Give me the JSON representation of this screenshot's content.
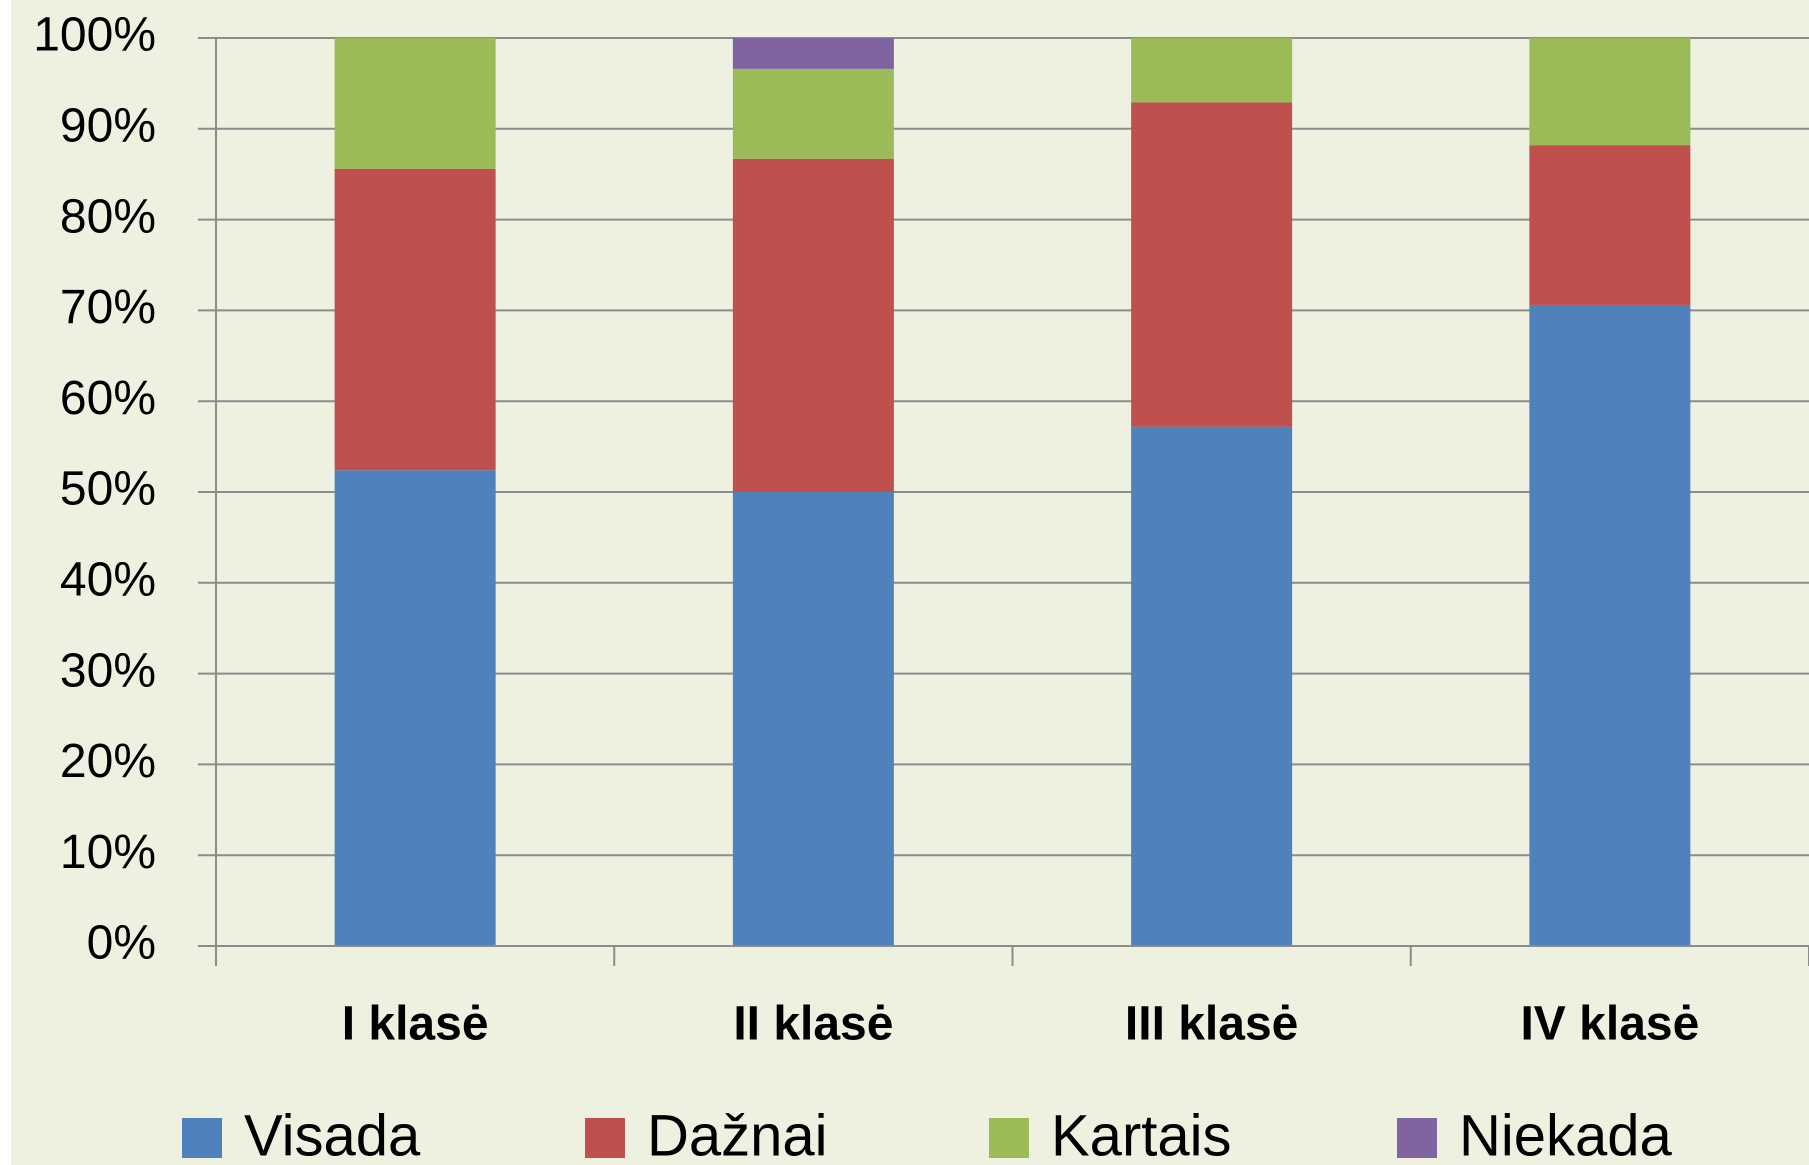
{
  "chart_data": {
    "type": "stacked_bar",
    "categories": [
      "I klasė",
      "II klasė",
      "III klasė",
      "IV klasė"
    ],
    "series": [
      {
        "name": "Visada",
        "color": "#4f81bd",
        "values": [
          52.4,
          50,
          57.2,
          70.6
        ]
      },
      {
        "name": "Dažnai",
        "color": "#c0504d",
        "values": [
          33.2,
          36.7,
          35.7,
          17.6
        ]
      },
      {
        "name": "Kartais",
        "color": "#9bbb59",
        "values": [
          14.4,
          9.9,
          7.1,
          11.8
        ]
      },
      {
        "name": "Niekada",
        "color": "#8064a2",
        "values": [
          0,
          3.4,
          0,
          0
        ]
      }
    ],
    "ylim": [
      0,
      100
    ],
    "yticks": [
      {
        "value": 0,
        "label": "0%"
      },
      {
        "value": 10,
        "label": "10%"
      },
      {
        "value": 20,
        "label": "20%"
      },
      {
        "value": 30,
        "label": "30%"
      },
      {
        "value": 40,
        "label": "40%"
      },
      {
        "value": 50,
        "label": "50%"
      },
      {
        "value": 60,
        "label": "60%"
      },
      {
        "value": 70,
        "label": "70%"
      },
      {
        "value": 80,
        "label": "80%"
      },
      {
        "value": 90,
        "label": "90%"
      },
      {
        "value": 100,
        "label": "100%"
      }
    ],
    "grid": true,
    "legend": "bottom"
  }
}
